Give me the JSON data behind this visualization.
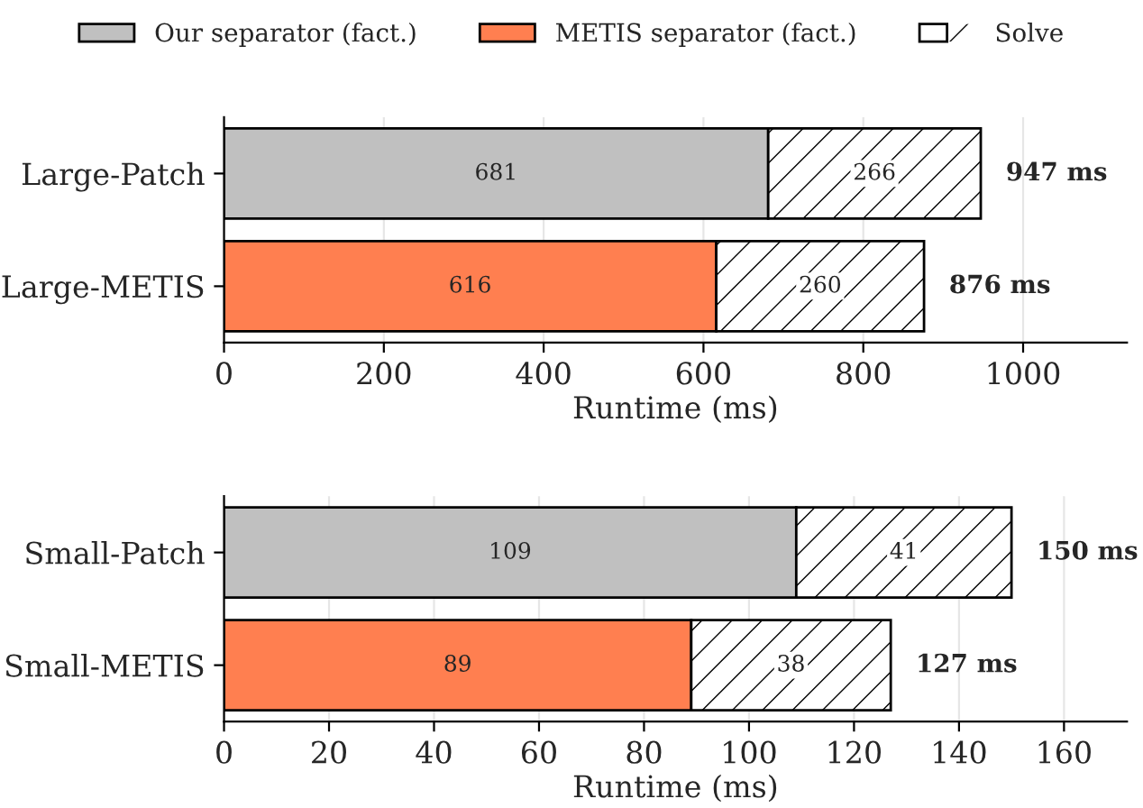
{
  "chart_data": [
    {
      "type": "bar",
      "orientation": "horizontal",
      "stacked": true,
      "categories": [
        "Large-Patch",
        "Large-METIS"
      ],
      "xlabel": "Runtime (ms)",
      "xlim": [
        0,
        1130
      ],
      "xticks": [
        0,
        200,
        400,
        600,
        800,
        1000
      ],
      "grid": "x",
      "legend": "top",
      "data_labels": true,
      "totals": [
        "947 ms",
        "876 ms"
      ],
      "series": [
        {
          "name": "Our separator (fact.)",
          "color": "#c0c0c0",
          "values": [
            681,
            null
          ]
        },
        {
          "name": "METIS separator (fact.)",
          "color": "#ff7f50",
          "values": [
            null,
            616
          ]
        },
        {
          "name": "Solve",
          "color": "#ffffff",
          "values": [
            266,
            260
          ]
        }
      ]
    },
    {
      "type": "bar",
      "orientation": "horizontal",
      "stacked": true,
      "categories": [
        "Small-Patch",
        "Small-METIS"
      ],
      "xlabel": "Runtime (ms)",
      "xlim": [
        0,
        172
      ],
      "xticks": [
        0,
        20,
        40,
        60,
        80,
        100,
        120,
        140,
        160
      ],
      "grid": "x",
      "data_labels": true,
      "totals": [
        "150 ms",
        "127 ms"
      ],
      "series": [
        {
          "color": "#c0c0c0",
          "values": [
            109,
            null
          ]
        },
        {
          "color": "#ff7f50",
          "values": [
            null,
            89
          ]
        },
        {
          "color": "#ffffff",
          "values": [
            41,
            38
          ]
        }
      ]
    }
  ]
}
